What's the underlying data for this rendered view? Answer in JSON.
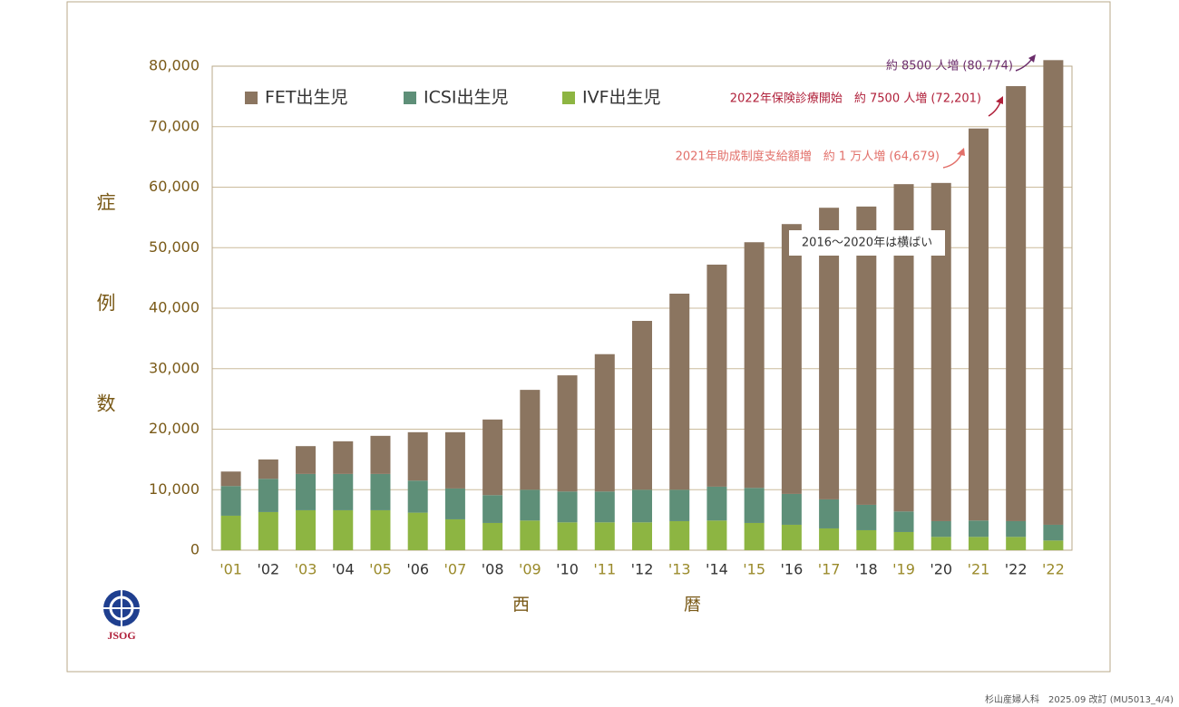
{
  "chart_data": {
    "type": "stacked_bar",
    "y_label": "症例数",
    "x_label": "西暦",
    "categories": [
      "'01",
      "'02",
      "'03",
      "'04",
      "'05",
      "'06",
      "'07",
      "'08",
      "'09",
      "'10",
      "'11",
      "'12",
      "'13",
      "'14",
      "'15",
      "'16",
      "'17",
      "'18",
      "'19",
      "'20",
      "'21",
      "'22",
      "'22"
    ],
    "series": [
      {
        "name": "IVF出生児",
        "color": "#8db542",
        "values": [
          5700,
          6300,
          6600,
          6600,
          6600,
          6200,
          5100,
          4500,
          4900,
          4600,
          4600,
          4600,
          4800,
          4900,
          4500,
          4200,
          3600,
          3300,
          3000,
          2200,
          2200,
          2200,
          1600
        ]
      },
      {
        "name": "ICSI出生児",
        "color": "#5e8f78",
        "values": [
          4900,
          5500,
          6000,
          6000,
          6000,
          5300,
          5100,
          4600,
          5100,
          5100,
          5100,
          5400,
          5200,
          5600,
          5800,
          5100,
          4800,
          4200,
          3400,
          2600,
          2700,
          2600,
          2600
        ]
      },
      {
        "name": "FET出生児",
        "color": "#8b7560",
        "values": [
          2400,
          3200,
          4600,
          5400,
          6300,
          8000,
          9300,
          12500,
          16500,
          19200,
          22700,
          27900,
          32400,
          36700,
          40600,
          44600,
          48200,
          49300,
          54100,
          55900,
          64800,
          71900,
          76800
        ]
      }
    ],
    "ylim": [
      0,
      80000
    ],
    "yticks": [
      0,
      {
        "value": 10000,
        "label": "10,000"
      },
      {
        "value": 20000,
        "label": "20,000"
      },
      {
        "value": 30000,
        "label": "30,000"
      },
      {
        "value": 40000,
        "label": "40,000"
      },
      {
        "value": 50000,
        "label": "50,000"
      },
      {
        "value": 60000,
        "label": "60,000"
      },
      {
        "value": 70000,
        "label": "70,000"
      },
      {
        "value": 80000,
        "label": "80,000"
      }
    ],
    "grid": true,
    "legend": "top-left",
    "annotations": [
      "約 8500 人増 (80,774)",
      "2022年保険診療開始　約 7500 人増 (72,201)",
      "2021年助成制度支給額増　約 1 万人増 (64,679)",
      "2016〜2020年は横ばい"
    ],
    "logo": "JSOG",
    "footer": "杉山産婦人科　2025.09 改訂 (MU5013_4/4)"
  }
}
